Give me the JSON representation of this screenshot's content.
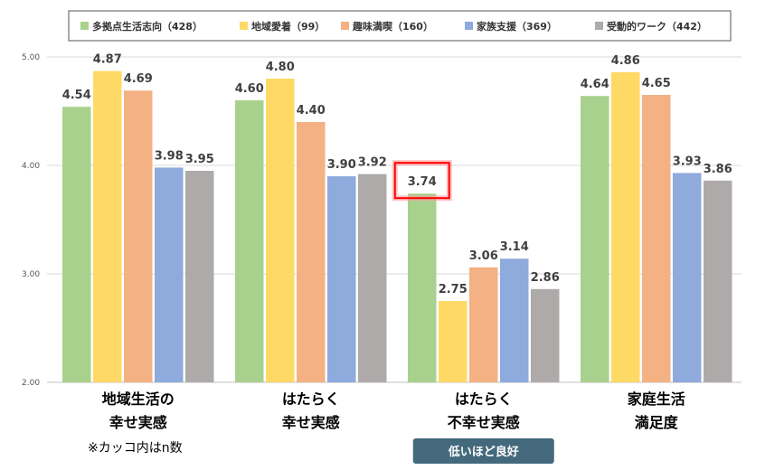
{
  "colors": {
    "series": [
      "#a9d18e",
      "#ffd966",
      "#f4b183",
      "#8faadc",
      "#aeaaaa"
    ],
    "highlight": "#ff0000",
    "badge": "#44697d",
    "gridline": "#d9d9d9"
  },
  "note": "※カッコ内はn数",
  "badge": {
    "label": "低いほど良好",
    "category_index": 2
  },
  "highlight": {
    "category_index": 2,
    "series_index": 0
  },
  "chart_data": {
    "type": "bar",
    "categories": [
      [
        "地域生活の",
        "幸せ実感"
      ],
      [
        "はたらく",
        "幸せ実感"
      ],
      [
        "はたらく",
        "不幸せ実感"
      ],
      [
        "家庭生活",
        "満足度"
      ]
    ],
    "series": [
      {
        "name": "多拠点生活志向（428）",
        "values": [
          4.54,
          4.6,
          3.74,
          4.64
        ]
      },
      {
        "name": "地域愛着（99）",
        "values": [
          4.87,
          4.8,
          2.75,
          4.86
        ]
      },
      {
        "name": "趣味満喫（160）",
        "values": [
          4.69,
          4.4,
          3.06,
          4.65
        ]
      },
      {
        "name": "家族支援（369）",
        "values": [
          3.98,
          3.9,
          3.14,
          3.93
        ]
      },
      {
        "name": "受動的ワーク（442）",
        "values": [
          3.95,
          3.92,
          2.86,
          3.86
        ]
      }
    ],
    "ylim": [
      2.0,
      5.0
    ],
    "yticks": [
      "2.00",
      "3.00",
      "4.00",
      "5.00"
    ],
    "grid": true,
    "legend": "top"
  }
}
